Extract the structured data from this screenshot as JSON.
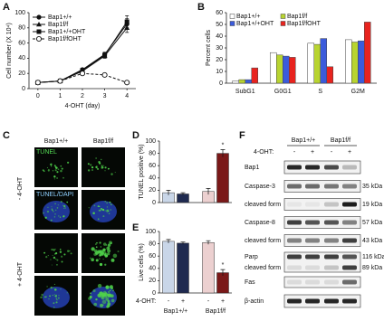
{
  "panel_labels": [
    "A",
    "B",
    "C",
    "D",
    "E",
    "F"
  ],
  "chart_data": [
    {
      "type": "line",
      "x_label": "4-OHT (day)",
      "y_label": "Cell number (X 10⁴)",
      "x": [
        0,
        1,
        2,
        3,
        4
      ],
      "xlim": [
        -0.4,
        4.4
      ],
      "xticks": [
        0,
        1,
        2,
        3,
        4
      ],
      "ylim": [
        0,
        100
      ],
      "yticks": [
        0,
        20,
        40,
        60,
        80,
        100
      ],
      "legend": "top-left",
      "series": [
        {
          "name": "Bap1+/+",
          "marker": "circle",
          "dashed": false,
          "values": [
            8,
            10,
            25,
            45,
            85
          ],
          "errors": [
            1,
            1,
            2,
            3,
            7
          ]
        },
        {
          "name": "Bap1f/f",
          "marker": "triangle",
          "dashed": false,
          "values": [
            8,
            10,
            23,
            43,
            80
          ],
          "errors": [
            1,
            1,
            2,
            3,
            6
          ]
        },
        {
          "name": "Bap1+/+OHT",
          "marker": "square",
          "dashed": false,
          "values": [
            8,
            10,
            24,
            44,
            88
          ],
          "errors": [
            1,
            1,
            2,
            3,
            8
          ]
        },
        {
          "name": "Bap1f/fOHT",
          "marker": "open-circle",
          "dashed": true,
          "values": [
            8,
            10,
            20,
            18,
            8
          ],
          "errors": [
            1,
            1,
            2,
            2,
            1
          ]
        }
      ]
    },
    {
      "type": "bar",
      "y_label": "Percent cells",
      "categories": [
        "SubG1",
        "G0G1",
        "S",
        "G2M"
      ],
      "ylim": [
        0,
        60
      ],
      "yticks": [
        0,
        10,
        20,
        30,
        40,
        50,
        60
      ],
      "legend": "top-left",
      "series": [
        {
          "name": "Bap1+/+",
          "color": "#ffffff",
          "values": [
            2,
            26,
            34,
            37
          ]
        },
        {
          "name": "Bap1f/f",
          "color": "#b8d430",
          "values": [
            3,
            24,
            33,
            35
          ]
        },
        {
          "name": "Bap1+/+OHT",
          "color": "#3b5bdb",
          "values": [
            3,
            23,
            38,
            36
          ]
        },
        {
          "name": "Bap1f/fOHT",
          "color": "#e8231e",
          "values": [
            13,
            22,
            14,
            52
          ]
        }
      ]
    },
    {
      "type": "bar",
      "y_label": "TUNEL positive (%)",
      "values": [
        16,
        14,
        18,
        80
      ],
      "errors": [
        4,
        2,
        5,
        6
      ],
      "colors": [
        "#c9d6e8",
        "#1f2a50",
        "#ecd0d0",
        "#7a1818"
      ],
      "ylim": [
        0,
        100
      ],
      "yticks": [
        0,
        20,
        40,
        60,
        80,
        100
      ],
      "annotation": "*"
    },
    {
      "type": "bar",
      "y_label": "Live cells (%)",
      "x_label": "4-OHT:",
      "categories": [
        "-",
        "+",
        "-",
        "+"
      ],
      "groups": [
        "Bap1+/+",
        "Bap1f/f"
      ],
      "values": [
        84,
        81,
        82,
        33
      ],
      "errors": [
        3,
        2,
        3,
        5
      ],
      "colors": [
        "#c9d6e8",
        "#1f2a50",
        "#ecd0d0",
        "#7a1818"
      ],
      "ylim": [
        0,
        100
      ],
      "yticks": [
        0,
        20,
        40,
        60,
        80,
        100
      ],
      "annotation": "*"
    }
  ],
  "microscopy": {
    "columns": [
      "Bap1+/+",
      "Bap1f/f"
    ],
    "rows": [
      "- 4-OHT",
      "+ 4-OHT"
    ],
    "stains": [
      "TUNEL",
      "TUNEL/DAPI"
    ]
  },
  "western_blot": {
    "groups": [
      "Bap1+/+",
      "Bap1f/f"
    ],
    "treatment_label": "4-OHT:",
    "treatment": [
      "-",
      "+",
      "-",
      "+"
    ],
    "rows": [
      {
        "label": "Bap1"
      },
      {
        "label": "Caspase-3",
        "size": "35 kDa"
      },
      {
        "label": "cleaved form",
        "size": "19 kDa"
      },
      {
        "label": "Caspase-8",
        "size": "57 kDa"
      },
      {
        "label": "cleaved form",
        "size": "43 kDa"
      },
      {
        "label": "Parp",
        "size": "116 kDa"
      },
      {
        "label": "cleaved form",
        "size": "89 kDa"
      },
      {
        "label": "Fas"
      },
      {
        "label": "β-actin"
      }
    ]
  }
}
